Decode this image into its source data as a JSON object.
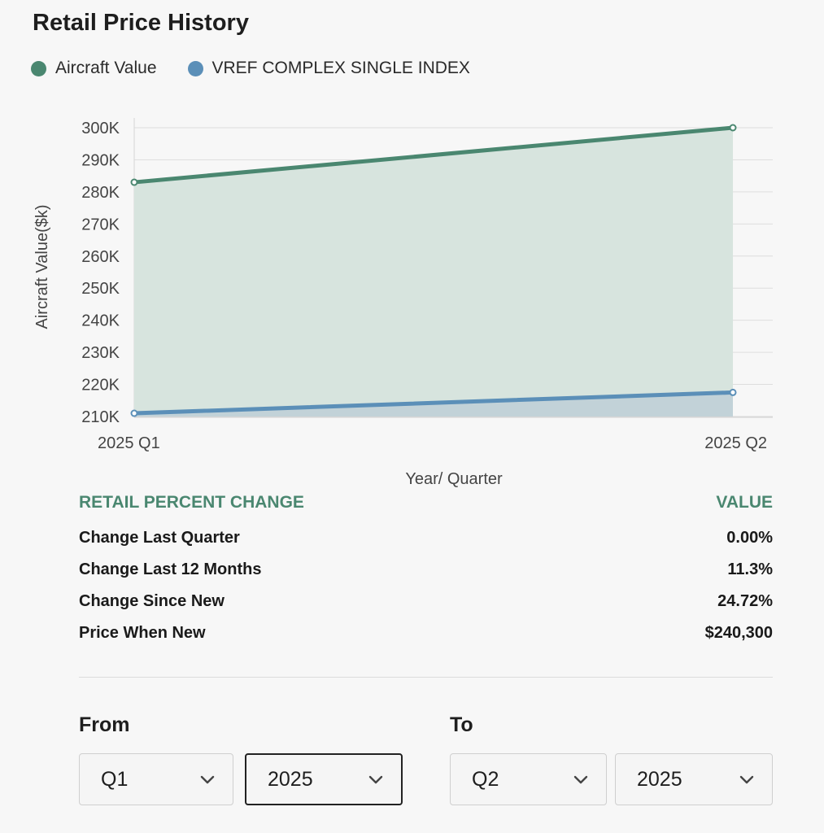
{
  "title": "Retail Price History",
  "legend": [
    {
      "label": "Aircraft Value",
      "color": "#4a8770"
    },
    {
      "label": "VREF COMPLEX SINGLE INDEX",
      "color": "#5b8fb8"
    }
  ],
  "chart_data": {
    "type": "area",
    "title": "Retail Price History",
    "xlabel": "Year/ Quarter",
    "ylabel": "Aircraft Value($k)",
    "categories": [
      "2025 Q1",
      "2025 Q2"
    ],
    "ylim": [
      210,
      300
    ],
    "yticks": [
      210,
      220,
      230,
      240,
      250,
      260,
      270,
      280,
      290,
      300
    ],
    "ytick_labels": [
      "210K",
      "220K",
      "230K",
      "240K",
      "250K",
      "260K",
      "270K",
      "280K",
      "290K",
      "300K"
    ],
    "grid": true,
    "legend_position": "top-left",
    "series": [
      {
        "name": "Aircraft Value",
        "values": [
          283,
          300
        ],
        "color": "#4a8770",
        "fill": "#d7e4de"
      },
      {
        "name": "VREF COMPLEX SINGLE INDEX",
        "values": [
          211,
          217.5
        ],
        "color": "#5b8fb8",
        "fill": "#c2d2d8"
      }
    ]
  },
  "table": {
    "header_left": "RETAIL PERCENT CHANGE",
    "header_right": "VALUE",
    "rows": [
      {
        "label": "Change Last Quarter",
        "value": "0.00%"
      },
      {
        "label": "Change Last 12 Months",
        "value": "11.3%"
      },
      {
        "label": "Change Since New",
        "value": "24.72%"
      },
      {
        "label": "Price When New",
        "value": "$240,300"
      }
    ]
  },
  "range": {
    "from_label": "From",
    "to_label": "To",
    "from_quarter": "Q1",
    "from_year": "2025",
    "to_quarter": "Q2",
    "to_year": "2025"
  }
}
